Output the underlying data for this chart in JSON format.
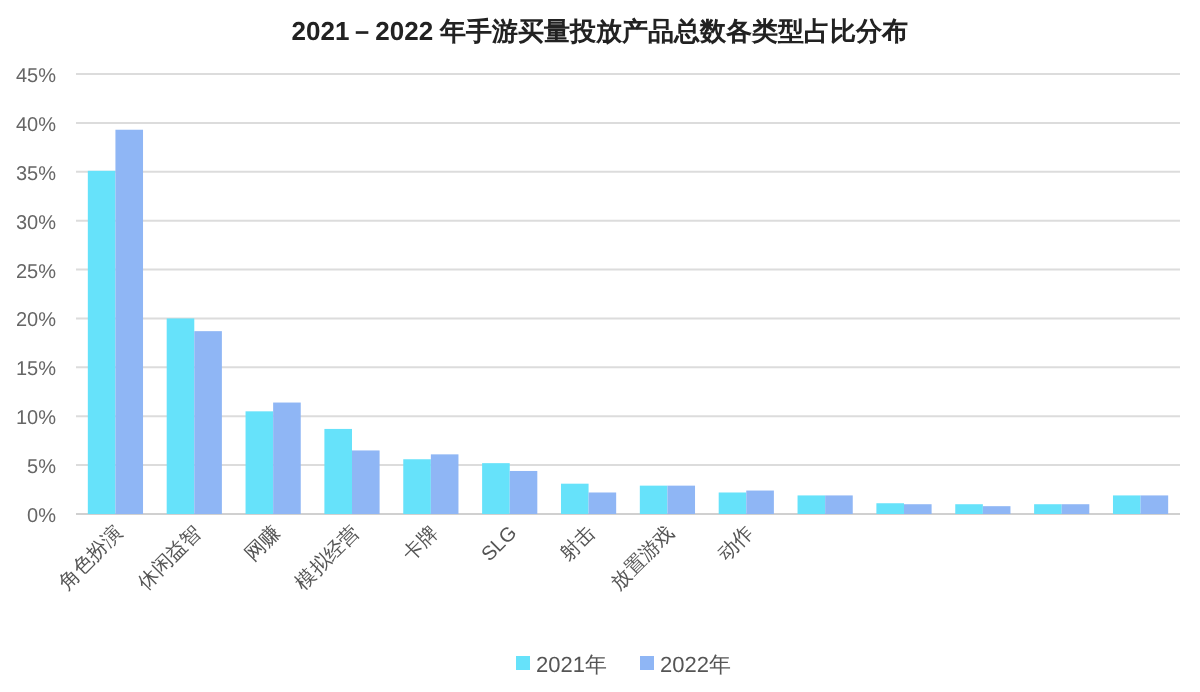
{
  "chart_data": {
    "type": "bar",
    "title": "2021－2022 年手游买量投放产品总数各类型占比分布",
    "categories": [
      "角色扮演",
      "休闲益智",
      "网赚",
      "模拟经营",
      "卡牌",
      "SLG",
      "射击",
      "放置游戏",
      "动作",
      null,
      null,
      null,
      null,
      null
    ],
    "series": [
      {
        "name": "2021年",
        "color": "#66e2fa",
        "values": [
          35.1,
          20.0,
          10.5,
          8.7,
          5.6,
          5.2,
          3.1,
          2.9,
          2.2,
          1.9,
          1.1,
          1.0,
          1.0,
          1.9
        ]
      },
      {
        "name": "2022年",
        "color": "#8fb6f5",
        "values": [
          39.3,
          18.7,
          11.4,
          6.5,
          6.1,
          4.4,
          2.2,
          2.9,
          2.4,
          1.9,
          1.0,
          0.8,
          1.0,
          1.9
        ]
      }
    ],
    "ylim": [
      0,
      45
    ],
    "yticks": [
      {
        "value": 0,
        "label": "0%"
      },
      {
        "value": 5,
        "label": "5%"
      },
      {
        "value": 10,
        "label": "10%"
      },
      {
        "value": 15,
        "label": "15%"
      },
      {
        "value": 20,
        "label": "20%"
      },
      {
        "value": 25,
        "label": "25%"
      },
      {
        "value": 30,
        "label": "30%"
      },
      {
        "value": 35,
        "label": "35%"
      },
      {
        "value": 40,
        "label": "40%"
      },
      {
        "value": 45,
        "label": "45%"
      }
    ],
    "grid": "y",
    "legend": "bottom"
  }
}
